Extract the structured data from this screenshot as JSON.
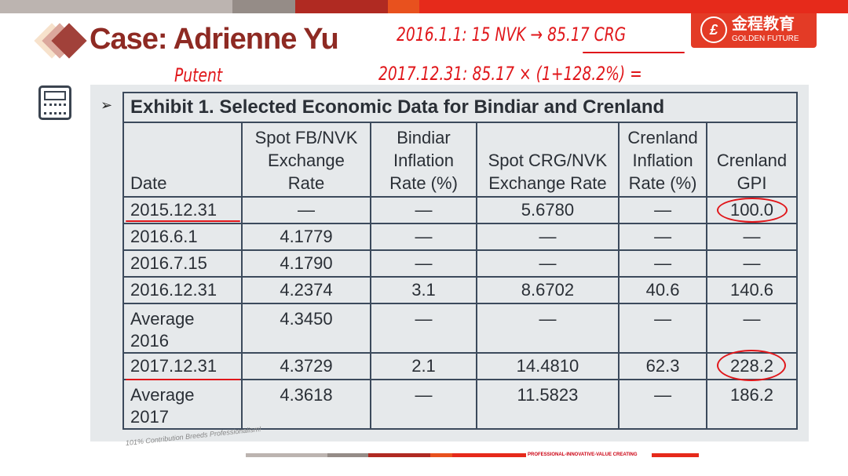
{
  "header": {
    "title": "Case: Adrienne Yu",
    "logo_cn": "金程教育",
    "logo_en": "GOLDEN FUTURE",
    "colors": {
      "title": "#8e2a23",
      "brand": "#e33b26"
    }
  },
  "annotations": {
    "line1": "2016.1.1:  15 NVK → 85.17 CRG",
    "line2": "2017.12.31:  85.17 × (1+128.2%) =",
    "note": "Putent"
  },
  "icons": {
    "calculator": "calculator-icon",
    "bullet": "arrow-bullet-icon"
  },
  "table": {
    "caption": "Exhibit 1. Selected Economic Data for Bindiar and Crenland",
    "headers": [
      "Date",
      "Spot FB/NVK Exchange Rate",
      "Bindiar Inflation Rate (%)",
      "Spot CRG/NVK Exchange Rate",
      "Crenland Inflation Rate (%)",
      "Crenland GPI"
    ],
    "rows": [
      [
        "2015.12.31",
        "—",
        "—",
        "5.6780",
        "—",
        "100.0"
      ],
      [
        "2016.6.1",
        "4.1779",
        "—",
        "—",
        "—",
        "—"
      ],
      [
        "2016.7.15",
        "4.1790",
        "—",
        "—",
        "—",
        "—"
      ],
      [
        "2016.12.31",
        "4.2374",
        "3.1",
        "8.6702",
        "40.6",
        "140.6"
      ],
      [
        "Average 2016",
        "4.3450",
        "—",
        "—",
        "—",
        "—"
      ],
      [
        "2017.12.31",
        "4.3729",
        "2.1",
        "14.4810",
        "62.3",
        "228.2"
      ],
      [
        "Average 2017",
        "4.3618",
        "—",
        "11.5823",
        "—",
        "186.2"
      ]
    ]
  },
  "footer": {
    "slogan": "101% Contribution Breeds Professionalism!",
    "tagline": "PROFESSIONAL-INNOVATIVE-VALUE CREATING"
  }
}
